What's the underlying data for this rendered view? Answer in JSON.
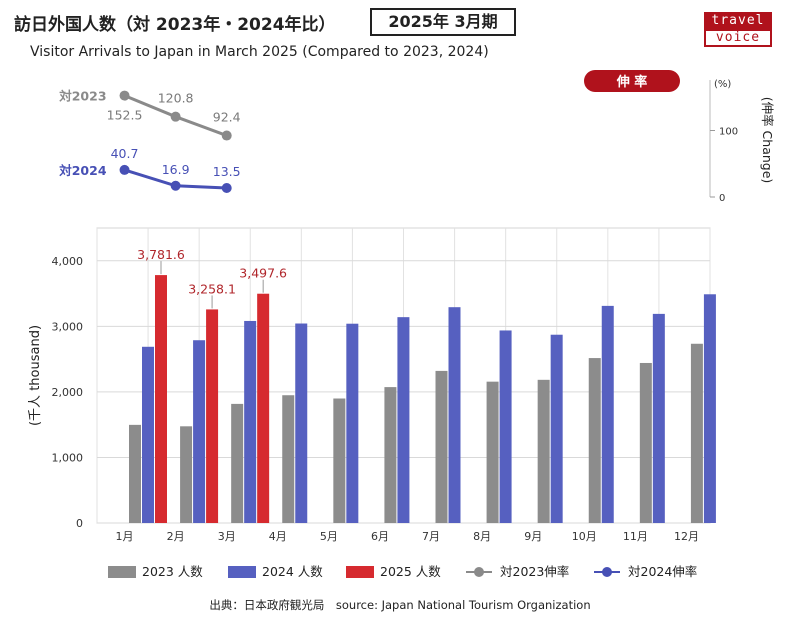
{
  "header": {
    "title_jp": "訪日外国人数（対 2023年・2024年比）",
    "period": "2025年 3月期",
    "title_en": "Visitor Arrivals to Japan in March 2025 (Compared to 2023, 2024)",
    "logo_top": "travel",
    "logo_bottom": "voice"
  },
  "colors": {
    "y2023": "#8c8c8c",
    "y2024": "#5660c0",
    "y2025": "#d62a2f",
    "rate_badge": "#b0121c",
    "rate2023_line": "#8a8a8a",
    "rate2024_line": "#4750b5"
  },
  "chart_data": [
    {
      "type": "line",
      "title": "伸 率",
      "ylabel": "(伸率 Change)",
      "yunit": "(%)",
      "yticks": [
        0,
        100
      ],
      "series": [
        {
          "name": "対2023",
          "x": [
            "1月",
            "2月",
            "3月"
          ],
          "values": [
            152.5,
            120.8,
            92.4
          ],
          "labels": [
            "152.5",
            "120.8",
            "92.4"
          ]
        },
        {
          "name": "対2024",
          "x": [
            "1月",
            "2月",
            "3月"
          ],
          "values": [
            40.7,
            16.9,
            13.5
          ],
          "labels": [
            "40.7",
            "16.9",
            "13.5"
          ]
        }
      ]
    },
    {
      "type": "bar",
      "categories": [
        "1月",
        "2月",
        "3月",
        "4月",
        "5月",
        "6月",
        "7月",
        "8月",
        "9月",
        "10月",
        "11月",
        "12月"
      ],
      "ylabel": "(千人 thousand)",
      "ylim": [
        0,
        4500
      ],
      "yticks": [
        0,
        1000,
        2000,
        3000,
        4000
      ],
      "ytick_labels": [
        "0",
        "1,000",
        "2,000",
        "3,000",
        "4,000"
      ],
      "grid": true,
      "series": [
        {
          "name": "2023 人数",
          "values": [
            1497,
            1475,
            1817,
            1949,
            1899,
            2073,
            2320,
            2156,
            2184,
            2516,
            2441,
            2734
          ]
        },
        {
          "name": "2024 人数",
          "values": [
            2688,
            2788,
            3082,
            3043,
            3040,
            3140,
            3292,
            2937,
            2872,
            3312,
            3190,
            3489
          ]
        },
        {
          "name": "2025 人数",
          "values": [
            3781.6,
            3258.1,
            3497.6,
            null,
            null,
            null,
            null,
            null,
            null,
            null,
            null,
            null
          ],
          "labels": [
            "3,781.6",
            "3,258.1",
            "3,497.6"
          ]
        }
      ]
    }
  ],
  "legend": [
    {
      "label": "2023 人数",
      "kind": "bar",
      "color": "#8c8c8c"
    },
    {
      "label": "2024 人数",
      "kind": "bar",
      "color": "#5660c0"
    },
    {
      "label": "2025 人数",
      "kind": "bar",
      "color": "#d62a2f"
    },
    {
      "label": "対2023伸率",
      "kind": "line",
      "color": "#8a8a8a"
    },
    {
      "label": "対2024伸率",
      "kind": "line",
      "color": "#4750b5"
    }
  ],
  "source": "出典：日本政府観光局　source: Japan National Tourism Organization"
}
